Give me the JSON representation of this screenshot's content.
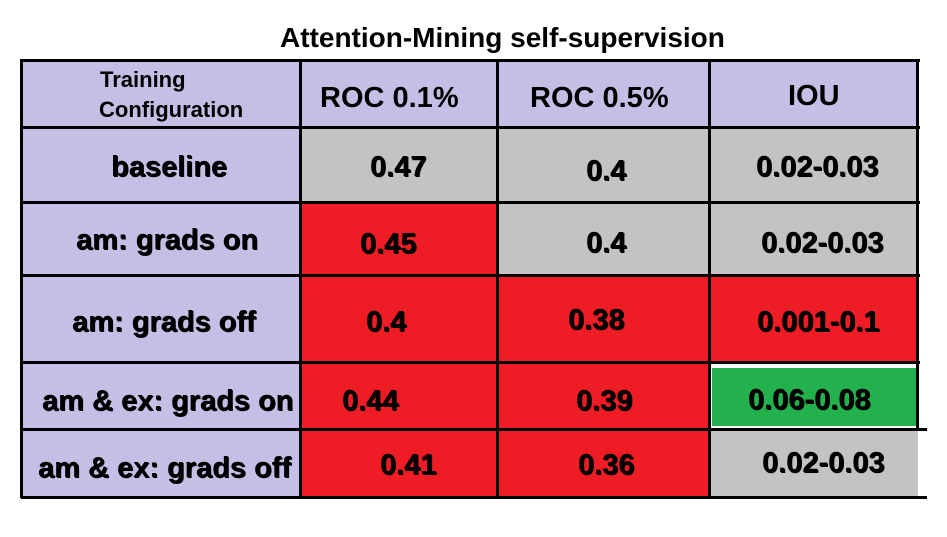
{
  "chart_data": {
    "type": "table",
    "title": "Attention-Mining self-supervision",
    "columns": [
      "Training Configuration",
      "ROC 0.1%",
      "ROC 0.5%",
      "IOU"
    ],
    "header_lines": [
      "Training",
      "Configuration"
    ],
    "rows": [
      {
        "label": "baseline",
        "values": [
          "0.47",
          "0.4",
          "0.02-0.03"
        ],
        "colors": [
          "gray",
          "gray",
          "gray"
        ]
      },
      {
        "label": "am: grads on",
        "values": [
          "0.45",
          "0.4",
          "0.02-0.03"
        ],
        "colors": [
          "red",
          "gray",
          "gray"
        ]
      },
      {
        "label": "am: grads off",
        "values": [
          "0.4",
          "0.38",
          "0.001-0.1"
        ],
        "colors": [
          "red",
          "red",
          "red"
        ]
      },
      {
        "label": "am & ex: grads on",
        "values": [
          "0.44",
          "0.39",
          "0.06-0.08"
        ],
        "colors": [
          "red",
          "red",
          "green"
        ]
      },
      {
        "label": "am & ex: grads off",
        "values": [
          "0.41",
          "0.36",
          "0.02-0.03"
        ],
        "colors": [
          "red",
          "red",
          "gray"
        ]
      }
    ],
    "palette": {
      "header": "#c5bfe5",
      "gray": "#c3c3c3",
      "red": "#ee1c24",
      "green": "#22b14c"
    }
  }
}
